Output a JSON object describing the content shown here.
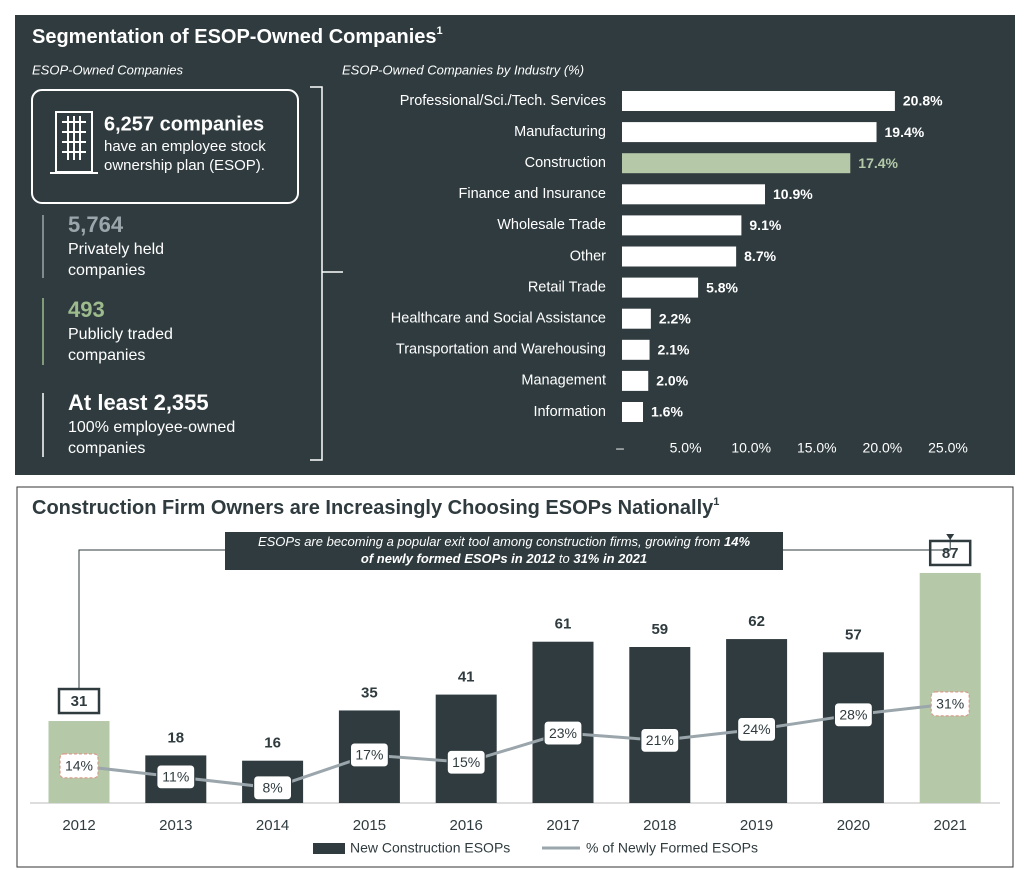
{
  "top_panel": {
    "title": "Segmentation of ESOP-Owned Companies",
    "title_note": "1",
    "subtitle": "ESOP-Owned Companies",
    "total": {
      "headline": "6,257 companies",
      "lines": [
        "have an employee stock",
        "ownership plan (ESOP)."
      ]
    },
    "stats": [
      {
        "number": "5,764",
        "lines": [
          "Privately held",
          "companies"
        ],
        "color": "#9aa6ab"
      },
      {
        "number": "493",
        "lines": [
          "Publicly traded",
          "companies"
        ],
        "color": "#9dbb8c"
      },
      {
        "number": "At least 2,355",
        "lines": [
          "100% employee-owned",
          "companies"
        ],
        "color": "#ffffff"
      }
    ]
  },
  "chart_data": [
    {
      "type": "bar",
      "orientation": "horizontal",
      "title": "ESOP-Owned Companies by Industry (%)",
      "categories": [
        "Professional/Sci./Tech. Services",
        "Manufacturing",
        "Construction",
        "Finance and Insurance",
        "Wholesale Trade",
        "Other",
        "Retail Trade",
        "Healthcare and Social Assistance",
        "Transportation and Warehousing",
        "Management",
        "Information"
      ],
      "values": [
        20.8,
        19.4,
        17.4,
        10.9,
        9.1,
        8.7,
        5.8,
        2.2,
        2.1,
        2.0,
        1.6
      ],
      "value_labels": [
        "20.8%",
        "19.4%",
        "17.4%",
        "10.9%",
        "9.1%",
        "8.7%",
        "5.8%",
        "2.2%",
        "2.1%",
        "2.0%",
        "1.6%"
      ],
      "color": "#ffffff",
      "colors": [
        "#ffffff",
        "#ffffff",
        "#b5c9a9",
        "#ffffff",
        "#ffffff",
        "#ffffff",
        "#ffffff",
        "#ffffff",
        "#ffffff",
        "#ffffff",
        "#ffffff"
      ],
      "xlim": [
        0,
        25
      ],
      "xticks": [
        {
          "value": 0,
          "label": "–"
        },
        {
          "value": 5,
          "label": "5.0%"
        },
        {
          "value": 10,
          "label": "10.0%"
        },
        {
          "value": 15,
          "label": "15.0%"
        },
        {
          "value": 20,
          "label": "20.0%"
        },
        {
          "value": 25,
          "label": "25.0%"
        }
      ]
    },
    {
      "type": "combo",
      "title": "Construction Firm Owners are Increasingly Choosing ESOPs Nationally",
      "title_note": "1",
      "annotation": [
        [
          {
            "text": "ESOPs are becoming a popular exit tool among construction firms, growing from ",
            "bold": false
          },
          {
            "text": "14%",
            "bold": true
          }
        ],
        [
          {
            "text": "of newly formed ESOPs in 2012",
            "bold": true
          },
          {
            "text": " to ",
            "bold": false
          },
          {
            "text": "31% in 2021",
            "bold": true
          }
        ]
      ],
      "categories": [
        "2012",
        "2013",
        "2014",
        "2015",
        "2016",
        "2017",
        "2018",
        "2019",
        "2020",
        "2021"
      ],
      "series": [
        {
          "name": "New Construction ESOPs",
          "type": "bar",
          "color": "#2f3b3f",
          "colors": [
            "#b5c9a9",
            "#2f3b3f",
            "#2f3b3f",
            "#2f3b3f",
            "#2f3b3f",
            "#2f3b3f",
            "#2f3b3f",
            "#2f3b3f",
            "#2f3b3f",
            "#b5c9a9"
          ],
          "values": [
            31,
            18,
            16,
            35,
            41,
            61,
            59,
            62,
            57,
            87
          ]
        },
        {
          "name": "% of Newly Formed ESOPs",
          "type": "line",
          "color": "#9aa6ab",
          "values": [
            14,
            11,
            8,
            17,
            15,
            23,
            21,
            24,
            28,
            31
          ],
          "value_labels": [
            "14%",
            "11%",
            "8%",
            "17%",
            "15%",
            "23%",
            "21%",
            "24%",
            "28%",
            "31%"
          ]
        }
      ]
    }
  ]
}
